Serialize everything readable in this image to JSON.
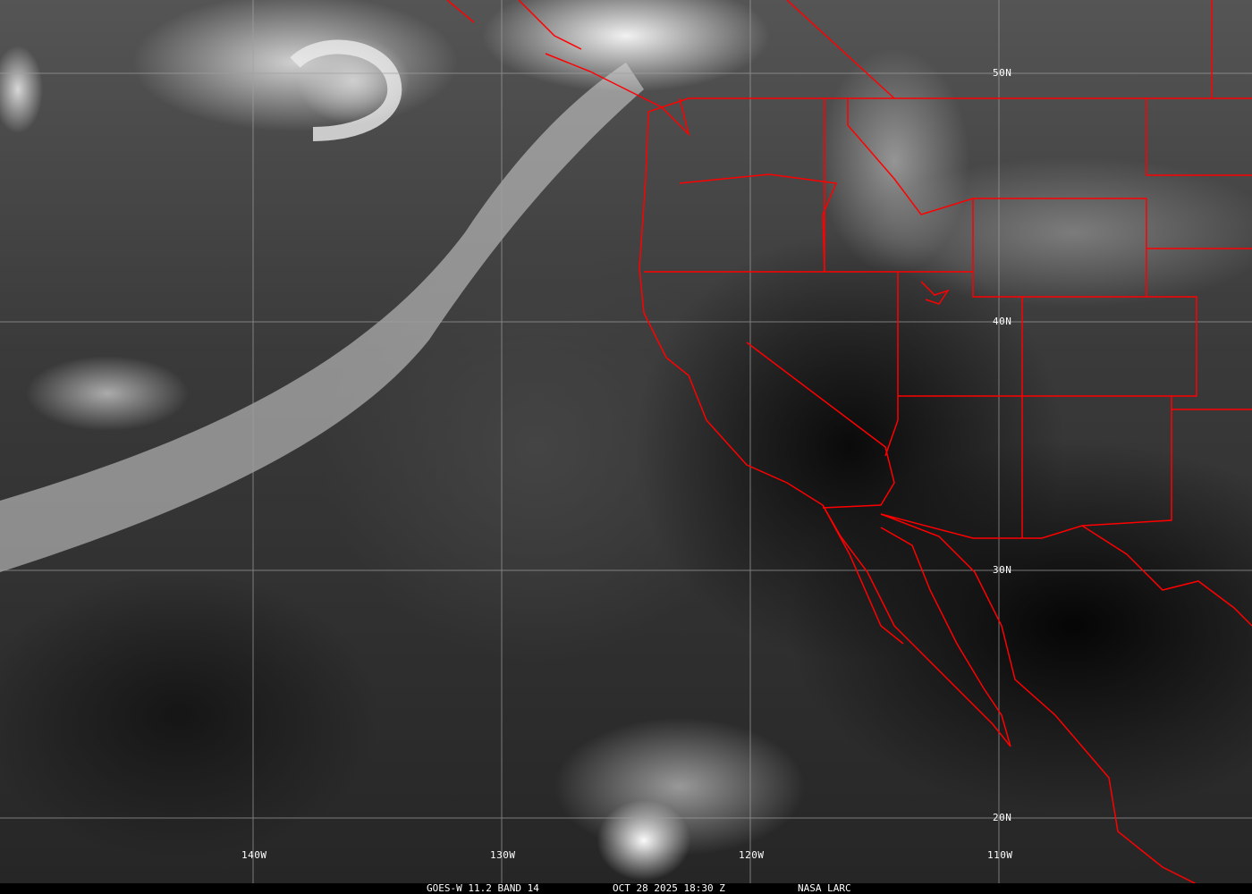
{
  "image": {
    "satellite": "GOES-W",
    "caption": {
      "product": "GOES-W 11.2 BAND 14",
      "datetime": "OCT 28 2025 18:30 Z",
      "source": "NASA LARC"
    },
    "latitude_labels": [
      "50N",
      "40N",
      "30N",
      "20N"
    ],
    "longitude_labels": [
      "140W",
      "130W",
      "120W",
      "110W"
    ],
    "colors": {
      "borders": "#ff0000",
      "grid": "#a0a0a0",
      "text": "#ffffff"
    }
  }
}
